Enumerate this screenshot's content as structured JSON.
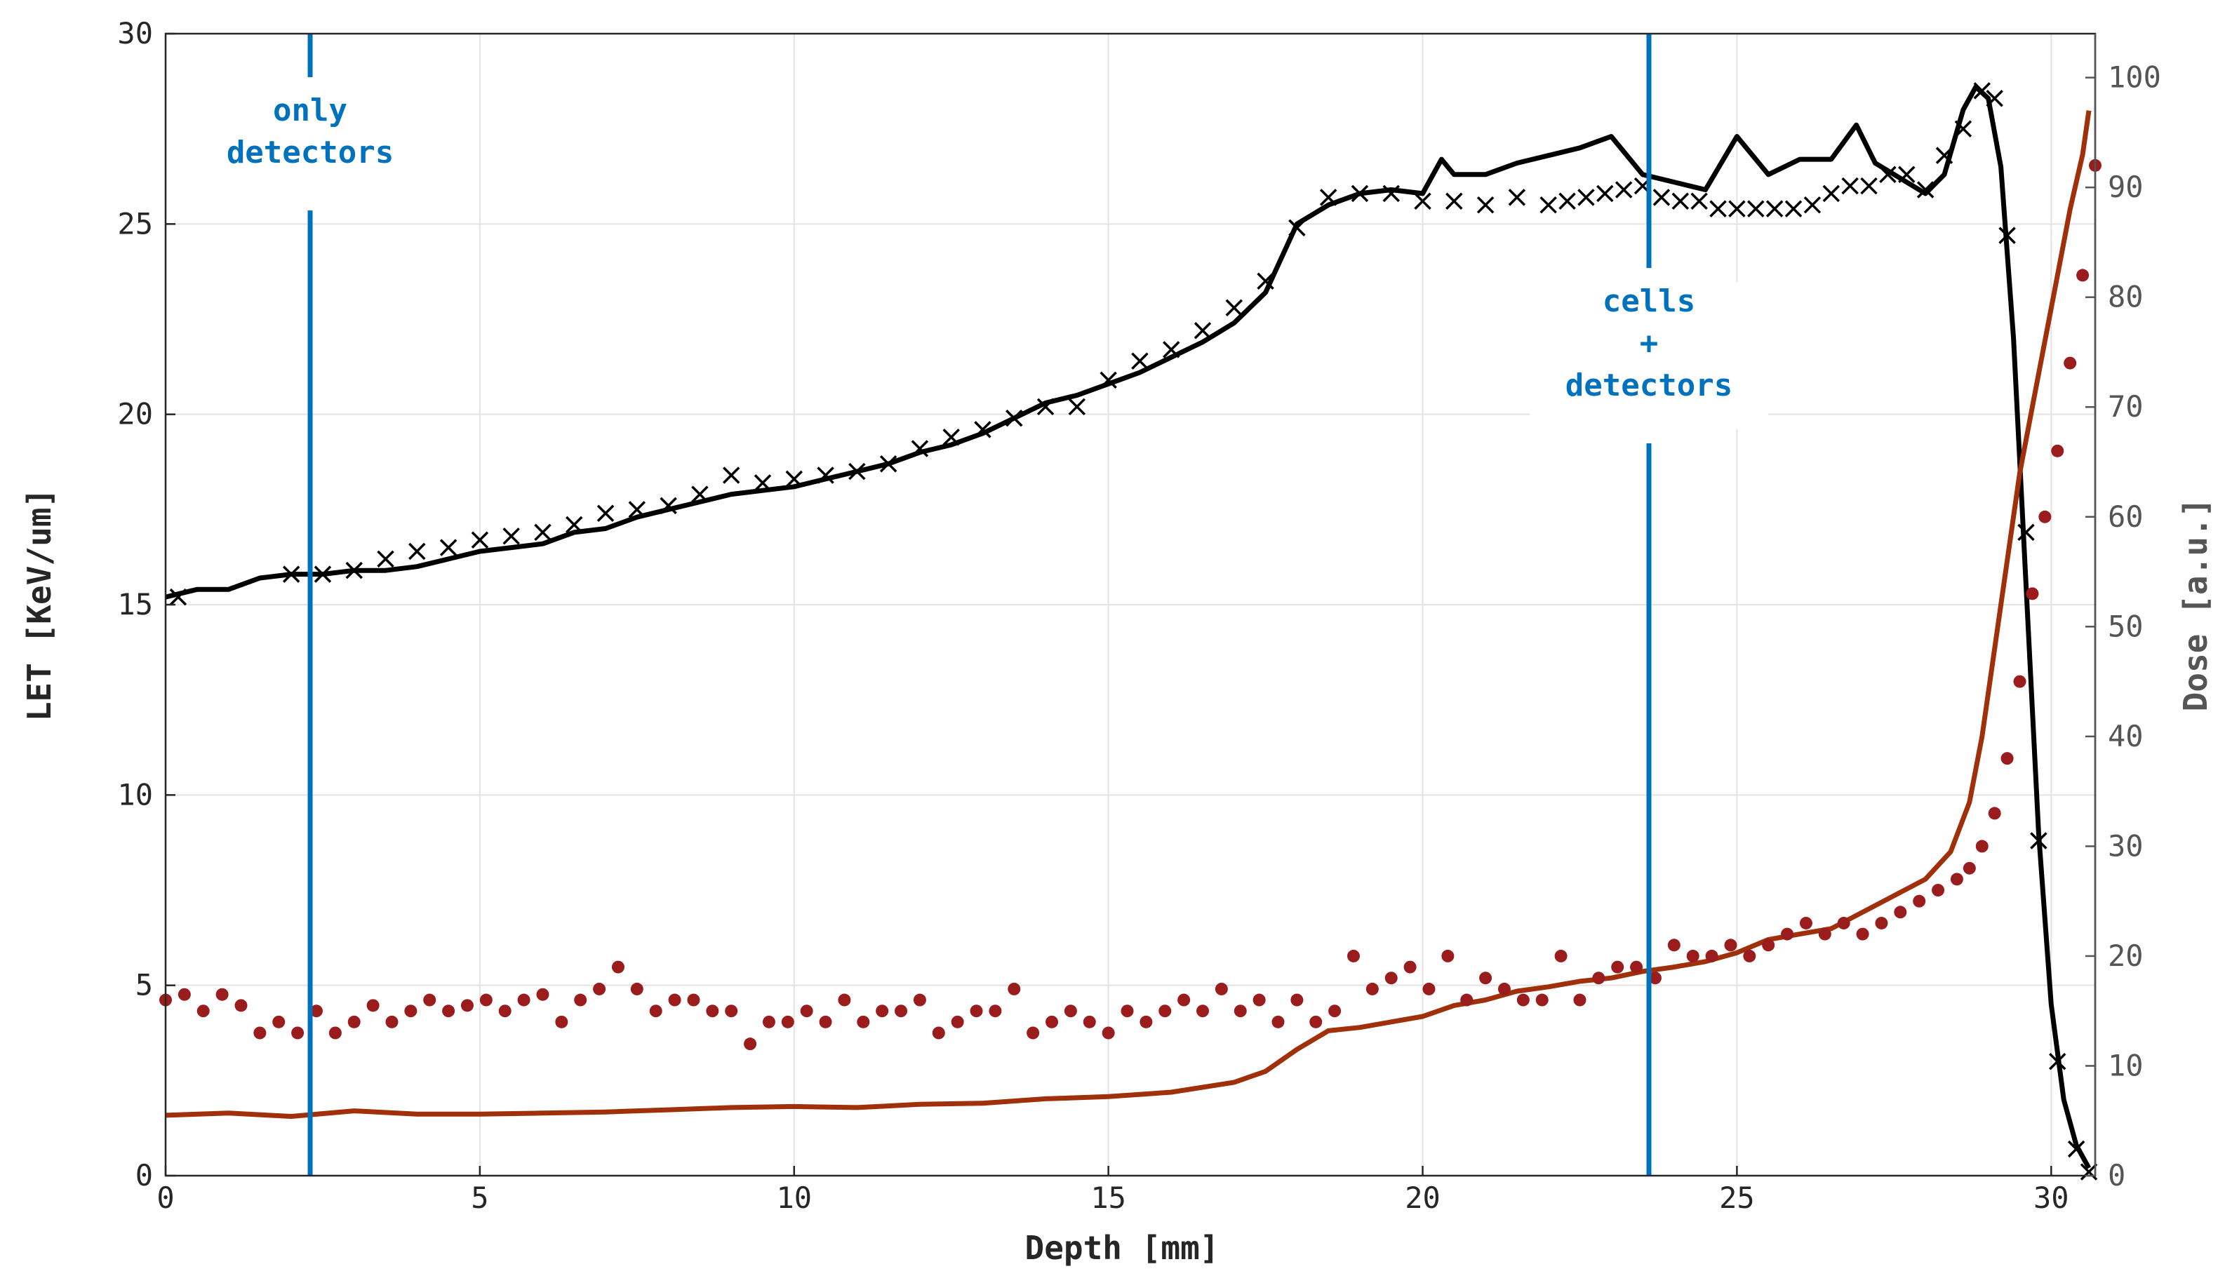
{
  "chart_data": {
    "type": "line",
    "xlabel": "Depth [mm]",
    "ylabel_left": "LET [KeV/um]",
    "ylabel_right": "Dose [a.u.]",
    "xlim": [
      0,
      30.7
    ],
    "ylim_left": [
      0,
      30
    ],
    "ylim_right": [
      0,
      104
    ],
    "xticks": [
      0,
      5,
      10,
      15,
      20,
      25,
      30
    ],
    "yticks_left": [
      0,
      5,
      10,
      15,
      20,
      25,
      30
    ],
    "yticks_right": [
      0,
      10,
      20,
      30,
      40,
      50,
      60,
      70,
      80,
      90,
      100
    ],
    "grid": true,
    "colors": {
      "let_curve": "#000000",
      "dose_curve": "#A0300A",
      "dose_markers": "#9B1C1C",
      "annotation": "#0072BD",
      "left_axis": "#262626",
      "right_axis": "#555555"
    },
    "annotations": [
      {
        "lines": [
          "only",
          "detectors"
        ],
        "x": 2.3
      },
      {
        "lines": [
          "cells",
          "+",
          "detectors"
        ],
        "x": 23.6
      }
    ],
    "series": [
      {
        "axis": "left",
        "style": "line",
        "x": [
          0,
          0.5,
          1,
          1.5,
          2,
          2.5,
          3,
          3.5,
          4,
          4.5,
          5,
          5.5,
          6,
          6.5,
          7,
          7.5,
          8,
          8.5,
          9,
          9.5,
          10,
          10.5,
          11,
          11.5,
          12,
          12.5,
          13,
          13.5,
          14,
          14.5,
          15,
          15.5,
          16,
          16.5,
          17,
          17.5,
          18,
          18.5,
          19,
          19.5,
          20,
          20.3,
          20.5,
          21,
          21.5,
          22,
          22.5,
          23,
          23.5,
          24,
          24.5,
          25,
          25.5,
          26,
          26.5,
          26.9,
          27.2,
          27.5,
          28,
          28.3,
          28.6,
          28.8,
          29,
          29.2,
          29.4,
          29.6,
          29.8,
          30,
          30.2,
          30.4,
          30.6
        ],
        "y": [
          15.2,
          15.4,
          15.4,
          15.7,
          15.8,
          15.8,
          15.9,
          15.9,
          16.0,
          16.2,
          16.4,
          16.5,
          16.6,
          16.9,
          17.0,
          17.3,
          17.5,
          17.7,
          17.9,
          18.0,
          18.1,
          18.3,
          18.5,
          18.7,
          19.0,
          19.2,
          19.5,
          19.9,
          20.3,
          20.5,
          20.8,
          21.1,
          21.5,
          21.9,
          22.4,
          23.2,
          25.0,
          25.5,
          25.8,
          25.9,
          25.8,
          26.7,
          26.3,
          26.3,
          26.6,
          26.8,
          27.0,
          27.3,
          26.3,
          26.1,
          25.9,
          27.3,
          26.3,
          26.7,
          26.7,
          27.6,
          26.6,
          26.3,
          25.8,
          26.3,
          28.0,
          28.6,
          28.3,
          26.5,
          22.0,
          15.5,
          9.0,
          4.5,
          2.0,
          0.8,
          0.2
        ]
      },
      {
        "axis": "left",
        "style": "markers-x",
        "x": [
          0.2,
          2,
          2.5,
          3,
          3.5,
          4,
          4.5,
          5,
          5.5,
          6,
          6.5,
          7,
          7.5,
          8,
          8.5,
          9,
          9.5,
          10,
          10.5,
          11,
          11.5,
          12,
          12.5,
          13,
          13.5,
          14,
          14.5,
          15,
          15.5,
          16,
          16.5,
          17,
          17.5,
          18,
          18.5,
          19,
          19.5,
          20,
          20.5,
          21,
          21.5,
          22,
          22.3,
          22.6,
          22.9,
          23.2,
          23.5,
          23.8,
          24.1,
          24.4,
          24.7,
          25,
          25.3,
          25.6,
          25.9,
          26.2,
          26.5,
          26.8,
          27.1,
          27.4,
          27.7,
          28,
          28.3,
          28.6,
          28.9,
          29.1,
          29.3,
          29.6,
          29.8,
          30.1,
          30.4,
          30.6
        ],
        "y": [
          15.2,
          15.8,
          15.8,
          15.9,
          16.2,
          16.4,
          16.5,
          16.7,
          16.8,
          16.9,
          17.1,
          17.4,
          17.5,
          17.6,
          17.9,
          18.4,
          18.2,
          18.3,
          18.4,
          18.5,
          18.7,
          19.1,
          19.4,
          19.6,
          19.9,
          20.2,
          20.2,
          20.9,
          21.4,
          21.7,
          22.2,
          22.8,
          23.5,
          24.9,
          25.7,
          25.8,
          25.8,
          25.6,
          25.6,
          25.5,
          25.7,
          25.5,
          25.6,
          25.7,
          25.8,
          25.9,
          26.0,
          25.7,
          25.6,
          25.6,
          25.4,
          25.4,
          25.4,
          25.4,
          25.4,
          25.5,
          25.8,
          26.0,
          26.0,
          26.3,
          26.3,
          25.9,
          26.8,
          27.5,
          28.5,
          28.3,
          24.7,
          16.9,
          8.8,
          3.0,
          0.7,
          0.1
        ]
      },
      {
        "axis": "right",
        "style": "line",
        "x": [
          0,
          1,
          2,
          3,
          4,
          5,
          6,
          7,
          8,
          9,
          10,
          11,
          12,
          13,
          14,
          15,
          16,
          17,
          17.5,
          18,
          18.5,
          19,
          19.5,
          20,
          20.5,
          21,
          21.5,
          22,
          22.5,
          23,
          23.5,
          24,
          24.5,
          25,
          25.5,
          26,
          26.5,
          27,
          27.5,
          28,
          28.4,
          28.7,
          28.9,
          29.1,
          29.3,
          29.5,
          29.7,
          29.9,
          30.1,
          30.3,
          30.5,
          30.6
        ],
        "y": [
          5.5,
          5.7,
          5.4,
          5.9,
          5.6,
          5.6,
          5.7,
          5.8,
          6.0,
          6.2,
          6.3,
          6.2,
          6.5,
          6.6,
          7.0,
          7.2,
          7.6,
          8.5,
          9.5,
          11.5,
          13.2,
          13.5,
          14.0,
          14.5,
          15.5,
          16.0,
          16.8,
          17.2,
          17.7,
          18.0,
          18.6,
          19.0,
          19.5,
          20.3,
          21.5,
          22.0,
          22.5,
          24.0,
          25.5,
          27.0,
          29.5,
          34.0,
          40.0,
          48.0,
          56.0,
          64.0,
          70.0,
          76.0,
          82.0,
          88.0,
          93.0,
          97.0
        ]
      },
      {
        "axis": "right",
        "style": "markers-dot",
        "x": [
          0,
          0.3,
          0.6,
          0.9,
          1.2,
          1.5,
          1.8,
          2.1,
          2.4,
          2.7,
          3,
          3.3,
          3.6,
          3.9,
          4.2,
          4.5,
          4.8,
          5.1,
          5.4,
          5.7,
          6,
          6.3,
          6.6,
          6.9,
          7.2,
          7.5,
          7.8,
          8.1,
          8.4,
          8.7,
          9,
          9.3,
          9.6,
          9.9,
          10.2,
          10.5,
          10.8,
          11.1,
          11.4,
          11.7,
          12,
          12.3,
          12.6,
          12.9,
          13.2,
          13.5,
          13.8,
          14.1,
          14.4,
          14.7,
          15,
          15.3,
          15.6,
          15.9,
          16.2,
          16.5,
          16.8,
          17.1,
          17.4,
          17.7,
          18,
          18.3,
          18.6,
          18.9,
          19.2,
          19.5,
          19.8,
          20.1,
          20.4,
          20.7,
          21,
          21.3,
          21.6,
          21.9,
          22.2,
          22.5,
          22.8,
          23.1,
          23.4,
          23.7,
          24,
          24.3,
          24.6,
          24.9,
          25.2,
          25.5,
          25.8,
          26.1,
          26.4,
          26.7,
          27,
          27.3,
          27.6,
          27.9,
          28.2,
          28.5,
          28.7,
          28.9,
          29.1,
          29.3,
          29.5,
          29.7,
          29.9,
          30.1,
          30.3,
          30.5,
          30.7
        ],
        "y": [
          16,
          16.5,
          15,
          16.5,
          15.5,
          13,
          14,
          13,
          15,
          13,
          14,
          15.5,
          14,
          15,
          16,
          15,
          15.5,
          16,
          15,
          16,
          16.5,
          14,
          16,
          17,
          19,
          17,
          15,
          16,
          16,
          15,
          15,
          12,
          14,
          14,
          15,
          14,
          16,
          14,
          15,
          15,
          16,
          13,
          14,
          15,
          15,
          17,
          13,
          14,
          15,
          14,
          13,
          15,
          14,
          15,
          16,
          15,
          17,
          15,
          16,
          14,
          16,
          14,
          15,
          20,
          17,
          18,
          19,
          17,
          20,
          16,
          18,
          17,
          16,
          16,
          20,
          16,
          18,
          19,
          19,
          18,
          21,
          20,
          20,
          21,
          20,
          21,
          22,
          23,
          22,
          23,
          22,
          23,
          24,
          25,
          26,
          27,
          28,
          30,
          33,
          38,
          45,
          53,
          60,
          66,
          74,
          82,
          92
        ]
      }
    ]
  }
}
